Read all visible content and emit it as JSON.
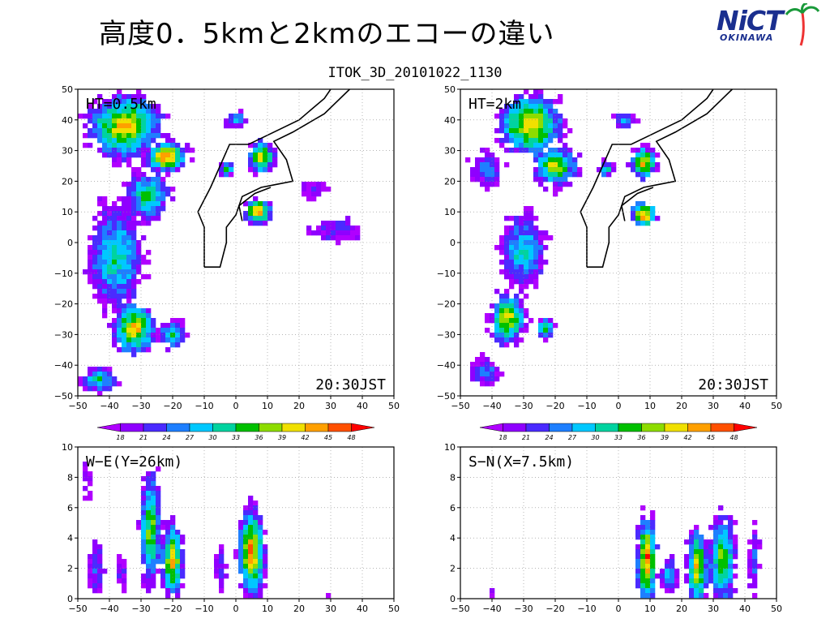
{
  "slide": {
    "title": "高度0．5kmと2kmのエコーの違い",
    "figure_title": "ITOK_3D_20101022_1130",
    "logo_text": "NiCT",
    "logo_sub": "OKINAWA"
  },
  "colorbar": {
    "ticks": [
      "18",
      "21",
      "24",
      "27",
      "30",
      "33",
      "36",
      "39",
      "42",
      "45",
      "48"
    ],
    "colors": [
      "#b000ff",
      "#8f00ff",
      "#4a2bff",
      "#1e7fff",
      "#00c8ff",
      "#00d3a0",
      "#00c000",
      "#8ddc00",
      "#f0e000",
      "#ffa000",
      "#ff5000",
      "#ff0000"
    ]
  },
  "chart_data": [
    {
      "type": "heatmap",
      "panel": "plan-view-0.5km",
      "label": "HT=0.5km",
      "time": "20:30JST",
      "xlim": [
        -50,
        50
      ],
      "ylim": [
        -50,
        50
      ],
      "xticks": [
        "-50",
        "-40",
        "-30",
        "-20",
        "-10",
        "0",
        "10",
        "20",
        "30",
        "40",
        "50"
      ],
      "yticks": [
        "50",
        "40",
        "30",
        "20",
        "10",
        "0",
        "-10",
        "-20",
        "-30",
        "-40",
        "-50"
      ],
      "grid": true,
      "echo_regions": [
        {
          "x": -35,
          "y": 38,
          "rx": 14,
          "ry": 12,
          "peak": 45
        },
        {
          "x": -22,
          "y": 28,
          "rx": 8,
          "ry": 6,
          "peak": 48
        },
        {
          "x": -28,
          "y": 15,
          "rx": 8,
          "ry": 10,
          "peak": 36
        },
        {
          "x": -38,
          "y": -5,
          "rx": 10,
          "ry": 20,
          "peak": 33
        },
        {
          "x": -32,
          "y": -28,
          "rx": 8,
          "ry": 10,
          "peak": 45
        },
        {
          "x": -20,
          "y": -30,
          "rx": 5,
          "ry": 5,
          "peak": 36
        },
        {
          "x": -43,
          "y": -45,
          "rx": 7,
          "ry": 5,
          "peak": 33
        },
        {
          "x": 8,
          "y": 28,
          "rx": 5,
          "ry": 6,
          "peak": 45
        },
        {
          "x": 7,
          "y": 10,
          "rx": 5,
          "ry": 5,
          "peak": 48
        },
        {
          "x": 0,
          "y": 40,
          "rx": 4,
          "ry": 3,
          "peak": 30
        },
        {
          "x": -3,
          "y": 24,
          "rx": 3,
          "ry": 3,
          "peak": 36
        },
        {
          "x": 32,
          "y": 4,
          "rx": 9,
          "ry": 4,
          "peak": 24
        },
        {
          "x": 25,
          "y": 17,
          "rx": 5,
          "ry": 3,
          "peak": 21
        }
      ]
    },
    {
      "type": "heatmap",
      "panel": "plan-view-2km",
      "label": "HT=2km",
      "time": "20:30JST",
      "xlim": [
        -50,
        50
      ],
      "ylim": [
        -50,
        50
      ],
      "xticks": [
        "-50",
        "-40",
        "-30",
        "-20",
        "-10",
        "0",
        "10",
        "20",
        "30",
        "40",
        "50"
      ],
      "yticks": [
        "50",
        "40",
        "30",
        "20",
        "10",
        "0",
        "-10",
        "-20",
        "-30",
        "-40",
        "-50"
      ],
      "grid": true,
      "echo_regions": [
        {
          "x": -28,
          "y": 38,
          "rx": 12,
          "ry": 12,
          "peak": 45
        },
        {
          "x": -20,
          "y": 25,
          "rx": 8,
          "ry": 8,
          "peak": 42
        },
        {
          "x": -42,
          "y": 24,
          "rx": 6,
          "ry": 6,
          "peak": 27
        },
        {
          "x": -30,
          "y": -3,
          "rx": 8,
          "ry": 14,
          "peak": 33
        },
        {
          "x": -35,
          "y": -25,
          "rx": 7,
          "ry": 10,
          "peak": 42
        },
        {
          "x": -23,
          "y": -28,
          "rx": 3,
          "ry": 4,
          "peak": 39
        },
        {
          "x": -42,
          "y": -42,
          "rx": 6,
          "ry": 5,
          "peak": 27
        },
        {
          "x": 8,
          "y": 26,
          "rx": 5,
          "ry": 6,
          "peak": 45
        },
        {
          "x": 8,
          "y": 9,
          "rx": 5,
          "ry": 5,
          "peak": 48
        },
        {
          "x": 2,
          "y": 40,
          "rx": 4,
          "ry": 3,
          "peak": 30
        },
        {
          "x": -4,
          "y": 24,
          "rx": 3,
          "ry": 3,
          "peak": 33
        }
      ]
    },
    {
      "type": "heatmap",
      "panel": "cross-section-we",
      "label": "W−E(Y=26km)",
      "xlim": [
        -50,
        50
      ],
      "ylim": [
        0,
        10
      ],
      "xticks": [
        "-50",
        "-40",
        "-30",
        "-20",
        "-10",
        "0",
        "10",
        "20",
        "30",
        "40",
        "50"
      ],
      "yticks": [
        "10",
        "8",
        "6",
        "4",
        "2",
        "0"
      ],
      "grid": true,
      "echo_regions": [
        {
          "x": -47,
          "y": 7.5,
          "rx": 1.5,
          "ry": 1.6,
          "peak": 18
        },
        {
          "x": -44,
          "y": 2,
          "rx": 3,
          "ry": 2,
          "peak": 24
        },
        {
          "x": -36,
          "y": 1.8,
          "rx": 2,
          "ry": 1.5,
          "peak": 21
        },
        {
          "x": -27,
          "y": 4.5,
          "rx": 4,
          "ry": 4.5,
          "peak": 39
        },
        {
          "x": -20,
          "y": 2.5,
          "rx": 4,
          "ry": 3,
          "peak": 45
        },
        {
          "x": -5,
          "y": 2,
          "rx": 2,
          "ry": 1.5,
          "peak": 24
        },
        {
          "x": 5,
          "y": 3,
          "rx": 5,
          "ry": 3.5,
          "peak": 48
        },
        {
          "x": 30,
          "y": 0.3,
          "rx": 1,
          "ry": 0.5,
          "peak": 18
        }
      ]
    },
    {
      "type": "heatmap",
      "panel": "cross-section-sn",
      "label": "S−N(X=7.5km)",
      "xlim": [
        -50,
        50
      ],
      "ylim": [
        0,
        10
      ],
      "xticks": [
        "-50",
        "-40",
        "-30",
        "-20",
        "-10",
        "0",
        "10",
        "20",
        "30",
        "40",
        "50"
      ],
      "yticks": [
        "10",
        "8",
        "6",
        "4",
        "2",
        "0"
      ],
      "grid": true,
      "echo_regions": [
        {
          "x": -40,
          "y": 0.3,
          "rx": 0.8,
          "ry": 0.5,
          "peak": 18
        },
        {
          "x": 9,
          "y": 2.5,
          "rx": 4,
          "ry": 3.5,
          "peak": 48
        },
        {
          "x": 16,
          "y": 1.5,
          "rx": 3,
          "ry": 1.5,
          "peak": 30
        },
        {
          "x": 25,
          "y": 2,
          "rx": 4,
          "ry": 3,
          "peak": 45
        },
        {
          "x": 33,
          "y": 2.5,
          "rx": 5,
          "ry": 3.5,
          "peak": 39
        },
        {
          "x": 43,
          "y": 2.5,
          "rx": 2,
          "ry": 2.5,
          "peak": 27
        }
      ]
    }
  ]
}
